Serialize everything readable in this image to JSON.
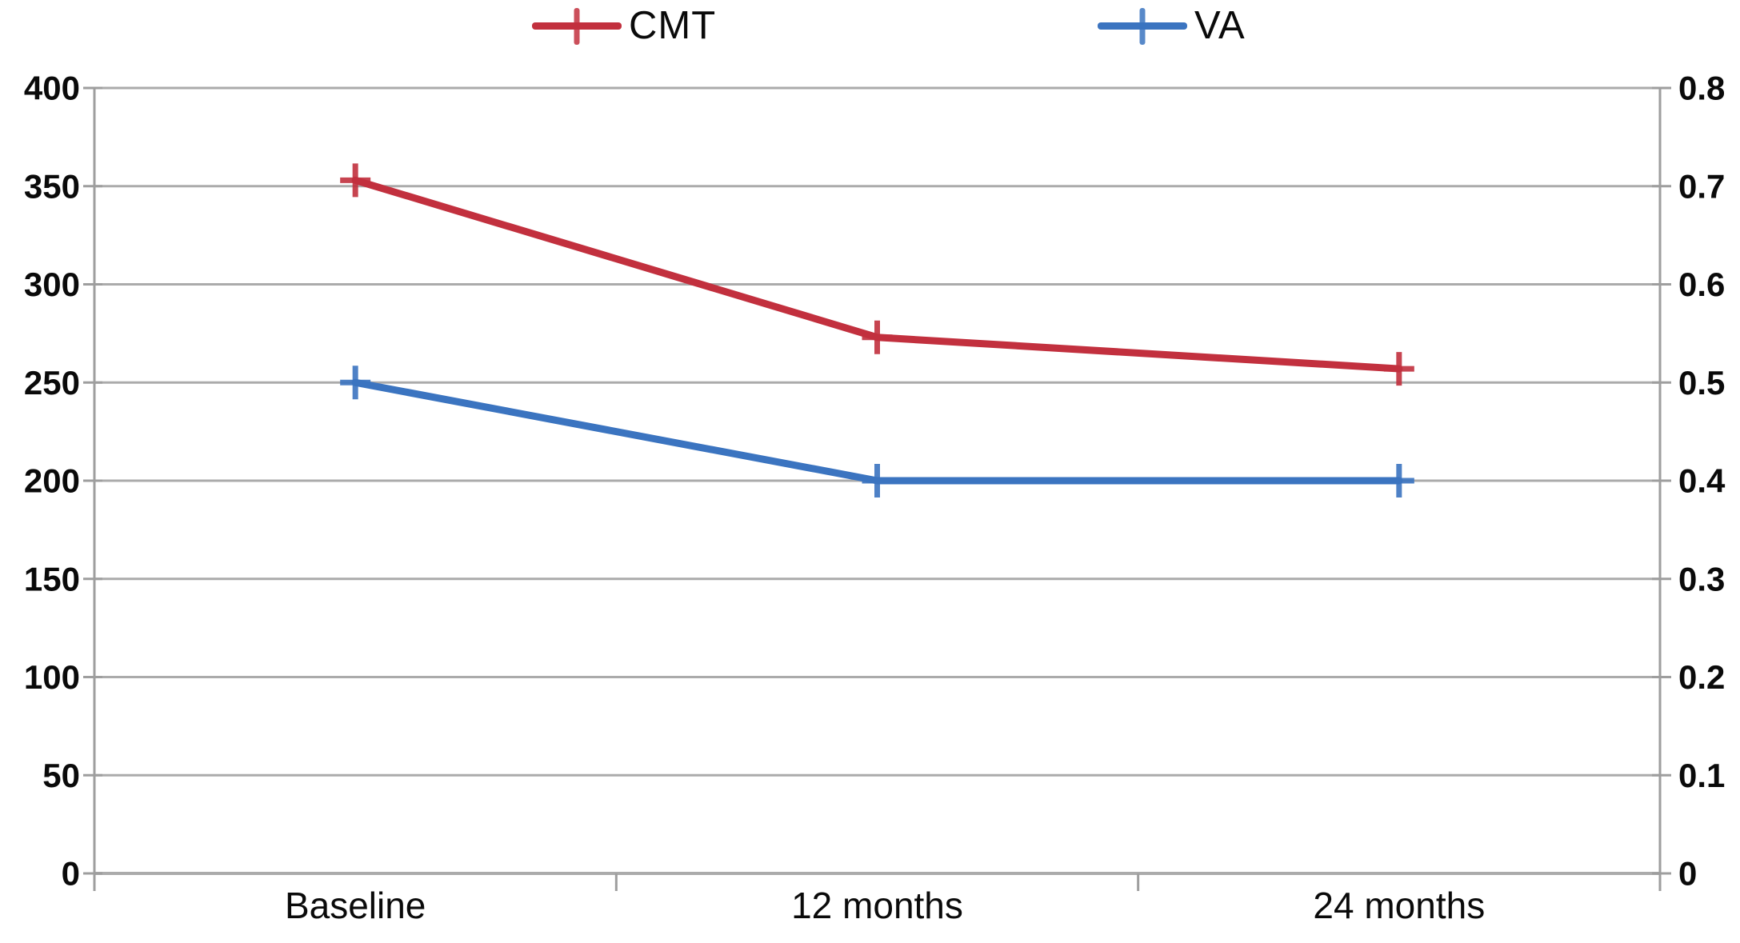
{
  "chart_data": {
    "type": "line",
    "categories": [
      "Baseline",
      "12 months",
      "24 months"
    ],
    "series": [
      {
        "name": "CMT",
        "axis": "left",
        "color": "#c2303e",
        "marker": "plus",
        "values": [
          353,
          273,
          257
        ]
      },
      {
        "name": "VA",
        "axis": "right",
        "color": "#3b74c0",
        "marker": "plus",
        "values": [
          0.5,
          0.4,
          0.4
        ]
      }
    ],
    "left_axis": {
      "min": 0,
      "max": 400,
      "tick_labels": [
        "0",
        "50",
        "100",
        "150",
        "200",
        "250",
        "300",
        "350",
        "400"
      ]
    },
    "right_axis": {
      "min": 0,
      "max": 0.8,
      "tick_labels": [
        "0",
        "0.1",
        "0.2",
        "0.3",
        "0.4",
        "0.5",
        "0.6",
        "0.7",
        "0.8"
      ]
    },
    "grid": true,
    "legend_position": "top",
    "colors": {
      "gridline": "#ababab",
      "axis_line": "#9e9e9e",
      "tick_text": "#0a0a0a",
      "background": "#ffffff"
    }
  }
}
